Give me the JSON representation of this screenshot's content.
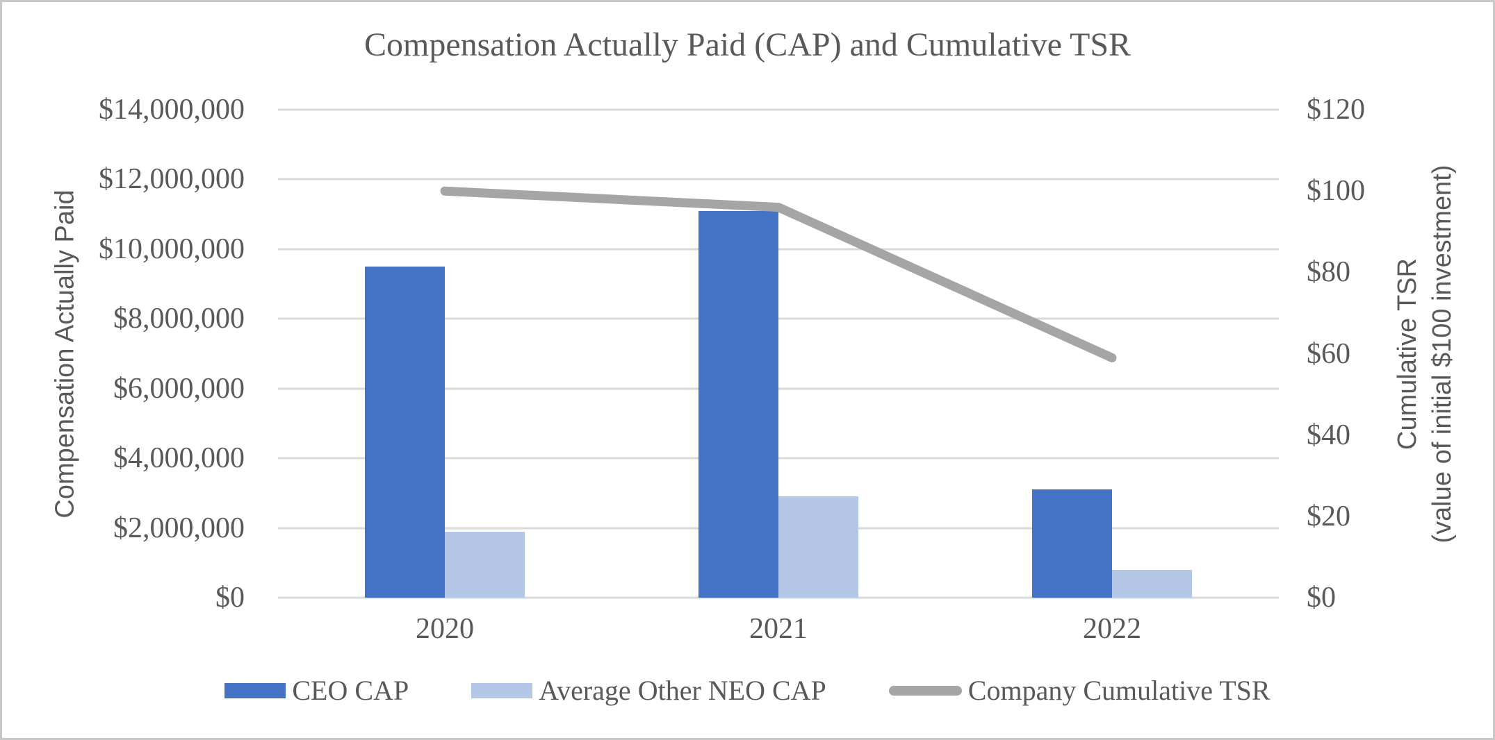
{
  "chart_data": {
    "type": "bar",
    "title": "Compensation Actually Paid (CAP) and Cumulative TSR",
    "categories": [
      "2020",
      "2021",
      "2022"
    ],
    "series": [
      {
        "name": "CEO CAP",
        "type": "bar",
        "axis": "left",
        "color": "#4472C4",
        "values": [
          9500000,
          11100000,
          3100000
        ]
      },
      {
        "name": "Average Other NEO CAP",
        "type": "bar",
        "axis": "left",
        "color": "#B4C7E7",
        "values": [
          1900000,
          2900000,
          800000
        ]
      },
      {
        "name": "Company Cumulative TSR",
        "type": "line",
        "axis": "right",
        "color": "#A5A5A5",
        "values": [
          100,
          96,
          59
        ]
      }
    ],
    "left_axis": {
      "title": "Compensation Actually Paid",
      "min": 0,
      "max": 14000000,
      "step": 2000000,
      "tick_labels": [
        "$14,000,000",
        "$12,000,000",
        "$10,000,000",
        "$8,000,000",
        "$6,000,000",
        "$4,000,000",
        "$2,000,000",
        "$0"
      ]
    },
    "right_axis": {
      "title_line1": "Cumulative TSR",
      "title_line2": "(value of initial $100 investment)",
      "min": 0,
      "max": 120,
      "step": 20,
      "tick_labels": [
        "$120",
        "$100",
        "$80",
        "$60",
        "$40",
        "$20",
        "$0"
      ]
    },
    "grid": true,
    "legend_position": "bottom"
  },
  "style_colors": {
    "text": "#595959",
    "gridline": "#D9D9D9",
    "border": "#C8C8C8",
    "background": "#FFFFFF"
  }
}
